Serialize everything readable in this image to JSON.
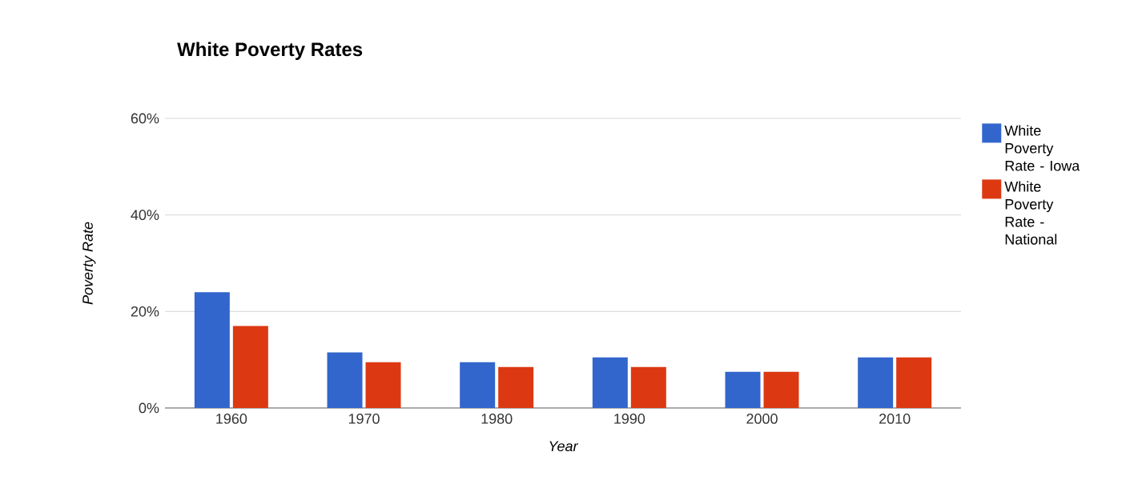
{
  "chart_data": {
    "type": "bar",
    "title": "White Poverty Rates",
    "xlabel": "Year",
    "ylabel": "Poverty Rate",
    "categories": [
      "1960",
      "1970",
      "1980",
      "1990",
      "2000",
      "2010"
    ],
    "series": [
      {
        "name": "White Poverty Rate - Iowa",
        "color": "#3366cc",
        "values": [
          24,
          11.5,
          9.5,
          10.5,
          7.5,
          10.5
        ]
      },
      {
        "name": "White Poverty Rate - National",
        "color": "#dc3912",
        "values": [
          17,
          9.5,
          8.5,
          8.5,
          7.5,
          10.5
        ]
      }
    ],
    "ylim": [
      0,
      60
    ],
    "yticks": [
      {
        "value": 0,
        "label": "0%"
      },
      {
        "value": 20,
        "label": "20%"
      },
      {
        "value": 40,
        "label": "40%"
      },
      {
        "value": 60,
        "label": "60%"
      }
    ],
    "grid": "y",
    "legend": "right"
  }
}
